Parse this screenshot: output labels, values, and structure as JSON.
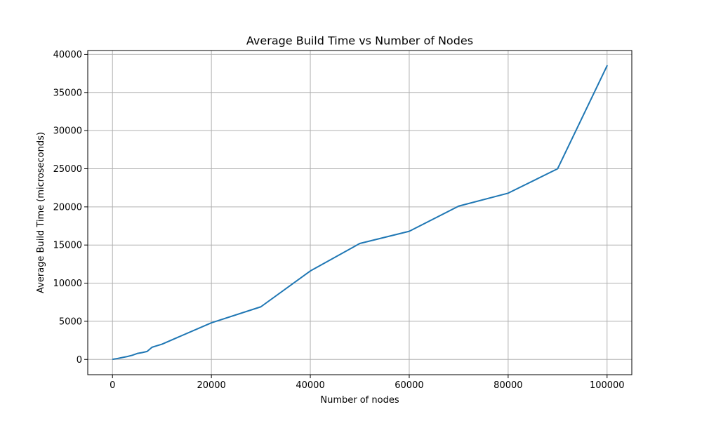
{
  "chart_data": {
    "type": "line",
    "title": "Average Build Time vs Number of Nodes",
    "xlabel": "Number of nodes",
    "ylabel": "Average Build Time (microseconds)",
    "xlim": [
      -5000,
      105000
    ],
    "ylim": [
      -2000,
      40500
    ],
    "xticks": [
      0,
      20000,
      40000,
      60000,
      80000,
      100000
    ],
    "yticks": [
      0,
      5000,
      10000,
      15000,
      20000,
      25000,
      30000,
      35000,
      40000
    ],
    "grid": true,
    "series": [
      {
        "color": "#1f77b4",
        "x": [
          100,
          1000,
          2000,
          3000,
          4000,
          5000,
          6000,
          7000,
          8000,
          9000,
          10000,
          20000,
          30000,
          40000,
          50000,
          60000,
          70000,
          80000,
          90000,
          100000
        ],
        "y": [
          20,
          120,
          250,
          380,
          550,
          780,
          900,
          1050,
          1600,
          1800,
          2000,
          4800,
          6900,
          11600,
          15200,
          16800,
          20100,
          21800,
          25000,
          38500
        ]
      }
    ]
  }
}
